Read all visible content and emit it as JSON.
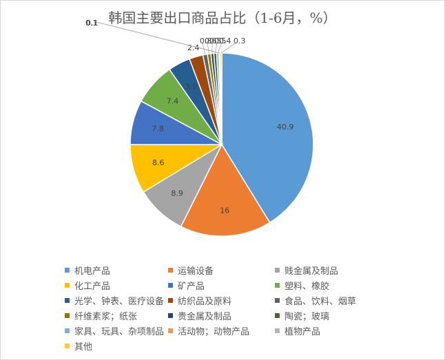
{
  "chart_data": {
    "type": "pie",
    "title": "韩国主要出口商品占比（1-6月，%）",
    "legend_position": "bottom",
    "slices": [
      {
        "label": "机电产品",
        "value": 40.9,
        "display": "40.9",
        "color": "#5B9BD5"
      },
      {
        "label": "运输设备",
        "value": 16,
        "display": "16",
        "color": "#ED7D31"
      },
      {
        "label": "贱金属及制品",
        "value": 8.9,
        "display": "8.9",
        "color": "#A5A5A5"
      },
      {
        "label": "化工产品",
        "value": 8.6,
        "display": "8.6",
        "color": "#FFC000"
      },
      {
        "label": "矿产品",
        "value": 7.8,
        "display": "7.8",
        "color": "#4472C4"
      },
      {
        "label": "塑料、橡胶",
        "value": 7.4,
        "display": "7.4",
        "color": "#70AD47"
      },
      {
        "label": "光学、钟表、医疗设备",
        "value": 3.9,
        "display": "3.9",
        "color": "#255E91"
      },
      {
        "label": "纺织品及原料",
        "value": 2.4,
        "display": "2.4",
        "color": "#9E480E"
      },
      {
        "label": "食品、饮料、烟草",
        "value": 0.8,
        "display": "0.8",
        "color": "#636363"
      },
      {
        "label": "纤维素浆；纸张",
        "value": 0.6,
        "display": "0.6",
        "color": "#997300"
      },
      {
        "label": "贵金属及制品",
        "value": 0.5,
        "display": "0.5",
        "color": "#264478"
      },
      {
        "label": "陶瓷；玻璃",
        "value": 0.5,
        "display": "0.5",
        "color": "#43682B"
      },
      {
        "label": "家具、玩具、杂项制品",
        "value": 0.4,
        "display": "0.4",
        "color": "#7CAFDD"
      },
      {
        "label": "活动物；动物产品",
        "value": 0.1,
        "display": "0.1",
        "color": "#F1975A"
      },
      {
        "label": "植物产品",
        "value": 0.1,
        "display": "0.1",
        "color": "#B7B7B7"
      },
      {
        "label": "其他",
        "value": 0.3,
        "display": "0.3",
        "color": "#FFCD33"
      }
    ]
  }
}
